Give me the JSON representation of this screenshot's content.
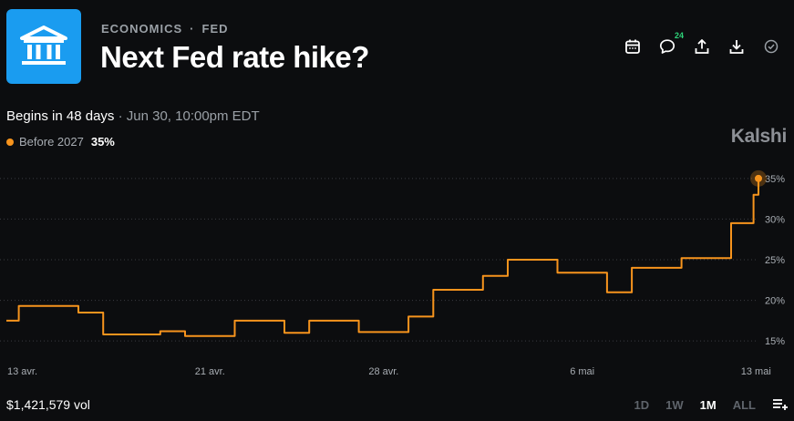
{
  "header": {
    "category": "ECONOMICS",
    "separator": "·",
    "subcategory": "FED",
    "title": "Next Fed rate hike?",
    "comment_count": "24",
    "logo_icon": "bank-building-icon",
    "logo_color": "#1a9cf0"
  },
  "actions": [
    "calendar-icon",
    "comment-icon",
    "share-icon",
    "download-icon",
    "check-circle-icon"
  ],
  "market": {
    "begins": "Begins in 48 days",
    "sep": " · ",
    "date": "Jun 30, 10:00pm EDT"
  },
  "legend": {
    "name": "Before 2027",
    "value": "35%",
    "color": "#f7941d"
  },
  "brand": "Kalshi",
  "footer": {
    "volume": "$1,421,579 vol",
    "ranges": [
      {
        "label": "1D",
        "active": false
      },
      {
        "label": "1W",
        "active": false
      },
      {
        "label": "1M",
        "active": true
      },
      {
        "label": "ALL",
        "active": false
      }
    ]
  },
  "chart_data": {
    "type": "line",
    "step": true,
    "color": "#f7941d",
    "ylim": [
      13,
      37
    ],
    "y_ticks": [
      15,
      20,
      25,
      30,
      35
    ],
    "y_tick_labels": [
      "15%",
      "20%",
      "25%",
      "30%",
      "35%"
    ],
    "x_ticks": [
      {
        "label": "13 avr.",
        "day": 0
      },
      {
        "label": "21 avr.",
        "day": 8
      },
      {
        "label": "28 avr.",
        "day": 15
      },
      {
        "label": "6 mai",
        "day": 23
      },
      {
        "label": "13 mai",
        "day": 30
      }
    ],
    "xlim": [
      -0.2,
      30.1
    ],
    "grid": true,
    "series": [
      {
        "points": [
          [
            -0.2,
            17.5
          ],
          [
            0.3,
            17.5
          ],
          [
            0.3,
            19.3
          ],
          [
            2.7,
            19.3
          ],
          [
            2.7,
            18.5
          ],
          [
            3.7,
            18.5
          ],
          [
            3.7,
            15.8
          ],
          [
            6.0,
            15.8
          ],
          [
            6.0,
            16.2
          ],
          [
            7.0,
            16.2
          ],
          [
            7.0,
            15.6
          ],
          [
            9.0,
            15.6
          ],
          [
            9.0,
            17.5
          ],
          [
            11.0,
            17.5
          ],
          [
            11.0,
            16.0
          ],
          [
            12.0,
            16.0
          ],
          [
            12.0,
            17.5
          ],
          [
            14.0,
            17.5
          ],
          [
            14.0,
            16.1
          ],
          [
            16.0,
            16.1
          ],
          [
            16.0,
            18.0
          ],
          [
            17.0,
            18.0
          ],
          [
            17.0,
            21.3
          ],
          [
            19.0,
            21.3
          ],
          [
            19.0,
            23.0
          ],
          [
            20.0,
            23.0
          ],
          [
            20.0,
            25.0
          ],
          [
            22.0,
            25.0
          ],
          [
            22.0,
            23.4
          ],
          [
            24.0,
            23.4
          ],
          [
            24.0,
            21.0
          ],
          [
            25.0,
            21.0
          ],
          [
            25.0,
            24.0
          ],
          [
            27.0,
            24.0
          ],
          [
            27.0,
            25.2
          ],
          [
            29.0,
            25.2
          ],
          [
            29.0,
            29.5
          ],
          [
            29.9,
            29.5
          ],
          [
            29.9,
            33.0
          ],
          [
            30.1,
            33.0
          ],
          [
            30.1,
            35.0
          ]
        ]
      }
    ],
    "last_value": 35
  }
}
